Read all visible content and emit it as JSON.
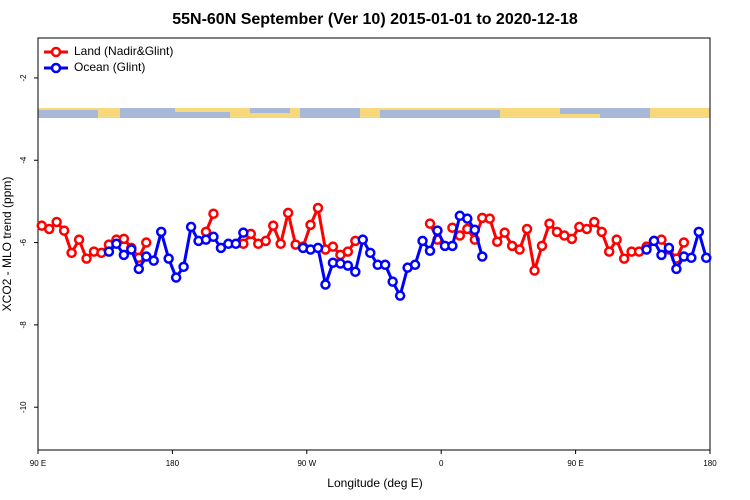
{
  "chart_data": {
    "type": "line",
    "title": "55N-60N September (Ver 10)   2015-01-01 to 2020-12-18",
    "x_label": "Longitude (deg E)",
    "y_label": "XCO2 - MLO trend (ppm)",
    "x": [
      92.5,
      97.5,
      102.5,
      107.5,
      112.5,
      117.5,
      122.5,
      127.5,
      132.5,
      137.5,
      142.5,
      147.5,
      152.5,
      157.5,
      162.5,
      167.5,
      172.5,
      177.5,
      182.5,
      187.5,
      192.5,
      197.5,
      202.5,
      207.5,
      212.5,
      217.5,
      222.5,
      227.5,
      232.5,
      237.5,
      242.5,
      247.5,
      252.5,
      257.5,
      262.5,
      267.5,
      272.5,
      277.5,
      282.5,
      287.5,
      292.5,
      297.5,
      302.5,
      307.5,
      312.5,
      317.5,
      322.5,
      327.5,
      332.5,
      337.5,
      342.5,
      347.5,
      352.5,
      357.5,
      362.5,
      367.5,
      372.5,
      377.5,
      382.5,
      387.5,
      392.5,
      397.5,
      402.5,
      407.5,
      412.5,
      417.5,
      422.5,
      427.5,
      432.5,
      437.5,
      442.5,
      447.5,
      452.5,
      457.5,
      462.5,
      467.5,
      472.5,
      477.5,
      482.5,
      487.5,
      492.5,
      497.5,
      502.5,
      507.5,
      512.5,
      517.5,
      522.5,
      527.5,
      532.5,
      537.5
    ],
    "series": [
      {
        "name": "Land (Nadir&Glint)",
        "color": "#ff0000",
        "values": [
          -5.59,
          -5.67,
          -5.5,
          -5.71,
          -6.25,
          -5.93,
          -6.39,
          -6.22,
          -6.25,
          -6.05,
          -5.93,
          -5.91,
          -6.13,
          -6.37,
          -6.0,
          null,
          null,
          null,
          null,
          null,
          null,
          null,
          -5.74,
          -5.3,
          null,
          null,
          null,
          -6.03,
          -5.79,
          -6.03,
          -5.96,
          -5.59,
          -6.03,
          -5.28,
          -6.05,
          -6.1,
          -5.57,
          -5.16,
          -6.17,
          -6.1,
          -6.3,
          -6.22,
          -5.96,
          null,
          null,
          null,
          null,
          null,
          null,
          null,
          null,
          null,
          -5.54,
          -5.93,
          null,
          -5.64,
          -5.83,
          -5.67,
          -5.93,
          -5.4,
          -5.42,
          -5.98,
          -5.76,
          -6.08,
          -6.17,
          -5.67,
          -6.68,
          -6.08,
          -5.54,
          -5.74,
          -5.83,
          -5.91,
          -5.62,
          -5.67,
          -5.5,
          -5.74,
          -6.22,
          -5.93,
          -6.39,
          -6.22,
          -6.22,
          -6.1,
          -5.96,
          -5.93,
          -6.17,
          -6.39,
          -6.0,
          null,
          null,
          null
        ]
      },
      {
        "name": "Ocean (Glint)",
        "color": "#0000ff",
        "values": [
          null,
          null,
          null,
          null,
          null,
          null,
          null,
          null,
          null,
          -6.22,
          -6.03,
          -6.3,
          -6.17,
          -6.64,
          -6.34,
          -6.44,
          -5.74,
          -6.39,
          -6.85,
          -6.59,
          -5.62,
          -5.96,
          -5.93,
          -5.86,
          -6.13,
          -6.03,
          -6.03,
          -5.76,
          null,
          null,
          null,
          null,
          null,
          null,
          null,
          -6.13,
          -6.17,
          -6.13,
          -7.02,
          -6.49,
          -6.51,
          -6.56,
          -6.71,
          -5.93,
          -6.25,
          -6.54,
          -6.54,
          -6.95,
          -7.29,
          -6.61,
          -6.54,
          -5.96,
          -6.2,
          -5.71,
          -6.08,
          -6.08,
          -5.35,
          -5.42,
          -5.69,
          -6.34,
          null,
          null,
          null,
          null,
          null,
          null,
          null,
          null,
          null,
          null,
          null,
          null,
          null,
          null,
          null,
          null,
          null,
          null,
          null,
          null,
          null,
          -6.17,
          -5.96,
          -6.3,
          -6.13,
          -6.64,
          -6.34,
          -6.37,
          -5.74,
          -6.37
        ]
      }
    ],
    "xlim": [
      90,
      540
    ],
    "xticks": [
      {
        "value": 90,
        "label": "90 E"
      },
      {
        "value": 180,
        "label": "180"
      },
      {
        "value": 270,
        "label": "90 W"
      },
      {
        "value": 360,
        "label": "0"
      },
      {
        "value": 450,
        "label": "90 E"
      },
      {
        "value": 540,
        "label": "180"
      }
    ],
    "ylim": [
      -11.04,
      -1.03
    ],
    "yticks": [
      -10,
      -8,
      -6,
      -4,
      -2
    ],
    "legend": "topleft"
  }
}
